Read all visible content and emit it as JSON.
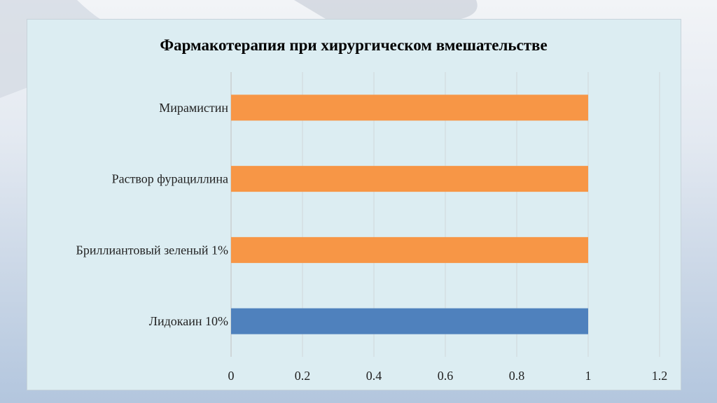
{
  "chart_data": {
    "type": "bar",
    "orientation": "horizontal",
    "title": "Фармакотерапия при хирургическом вмешательстве",
    "categories": [
      "Мирамистин",
      "Раствор фурациллина",
      "Бриллиантовый зеленый 1%",
      "Лидокаин 10%"
    ],
    "values": [
      1,
      1,
      1,
      1
    ],
    "bar_colors": [
      "#f79646",
      "#f79646",
      "#f79646",
      "#4f81bd"
    ],
    "xlim": [
      0,
      1.2
    ],
    "x_ticks": [
      "0",
      "0.2",
      "0.4",
      "0.6",
      "0.8",
      "1",
      "1.2"
    ],
    "grid": true
  },
  "colors": {
    "orange": "#f79646",
    "blue": "#4f81bd",
    "plot_bg": "#dcedf2"
  }
}
